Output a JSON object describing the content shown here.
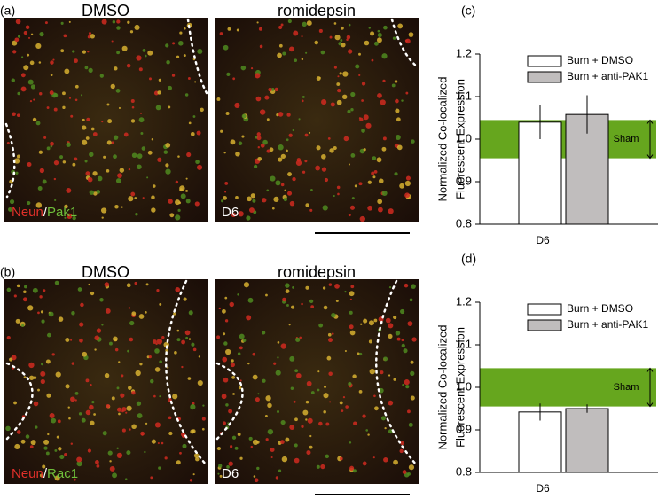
{
  "images": [
    {
      "label": "(a)",
      "left_title": "DMSO",
      "right_title": "romidepsin",
      "stain": [
        "Neun",
        "/",
        "Pak1"
      ],
      "timepoint": "D6"
    },
    {
      "label": "(b)",
      "left_title": "DMSO",
      "right_title": "romidepsin",
      "stain": [
        "Neun",
        "/",
        "Rac1"
      ],
      "timepoint": "D6"
    }
  ],
  "chart_data": [
    {
      "type": "bar",
      "panel_label": "(c)",
      "y_label": [
        "Normalized Co-localized",
        "Fluorescent Expression"
      ],
      "categories": [
        "D6"
      ],
      "series": [
        {
          "name": "Burn + DMSO",
          "color": "#ffffff",
          "values": [
            1.04
          ],
          "errors": [
            0.04
          ]
        },
        {
          "name": "Burn + anti-PAK1",
          "color": "#c0bdbd",
          "values": [
            1.058
          ],
          "errors": [
            0.045
          ]
        }
      ],
      "ylim": [
        0.8,
        1.2
      ],
      "yticks": [
        0.8,
        0.9,
        {
          "value": 1.0,
          "label": "1.0"
        },
        1.1,
        1.2
      ],
      "sham_band": {
        "label": "Sham",
        "ymin": 0.955,
        "ymax": 1.045,
        "color": "#66a61e"
      }
    },
    {
      "type": "bar",
      "panel_label": "(d)",
      "y_label": [
        "Normalized Co-localized",
        "Fluorescent Expression"
      ],
      "categories": [
        "D6"
      ],
      "series": [
        {
          "name": "Burn + DMSO",
          "color": "#ffffff",
          "values": [
            0.942
          ],
          "errors": [
            0.02
          ]
        },
        {
          "name": "Burn + anti-PAK1",
          "color": "#c0bdbd",
          "values": [
            0.95
          ],
          "errors": [
            0.01
          ]
        }
      ],
      "ylim": [
        0.8,
        1.2
      ],
      "yticks": [
        0.8,
        0.9,
        {
          "value": 1.0,
          "label": "1.0"
        },
        1.1,
        1.2
      ],
      "sham_band": {
        "label": "Sham",
        "ymin": 0.955,
        "ymax": 1.045,
        "color": "#66a61e"
      }
    }
  ]
}
